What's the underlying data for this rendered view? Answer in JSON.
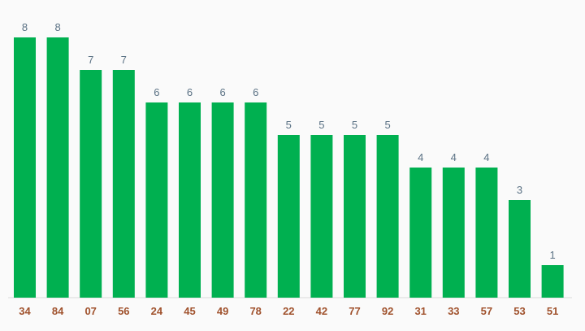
{
  "chart_data": {
    "type": "bar",
    "categories": [
      "34",
      "84",
      "07",
      "56",
      "24",
      "45",
      "49",
      "78",
      "22",
      "42",
      "77",
      "92",
      "31",
      "33",
      "57",
      "53",
      "51"
    ],
    "values": [
      8,
      8,
      7,
      7,
      6,
      6,
      6,
      6,
      5,
      5,
      5,
      5,
      4,
      4,
      4,
      3,
      1
    ],
    "title": "",
    "xlabel": "",
    "ylabel": "",
    "ylim": [
      0,
      8
    ],
    "grid": false,
    "legend": "none",
    "data_labels": true,
    "colors": {
      "bar": "#00b050",
      "value_label": "#5a7184",
      "tick_label": "#a0522d",
      "baseline": "#d9d9d9",
      "background": "#fafafa"
    }
  }
}
